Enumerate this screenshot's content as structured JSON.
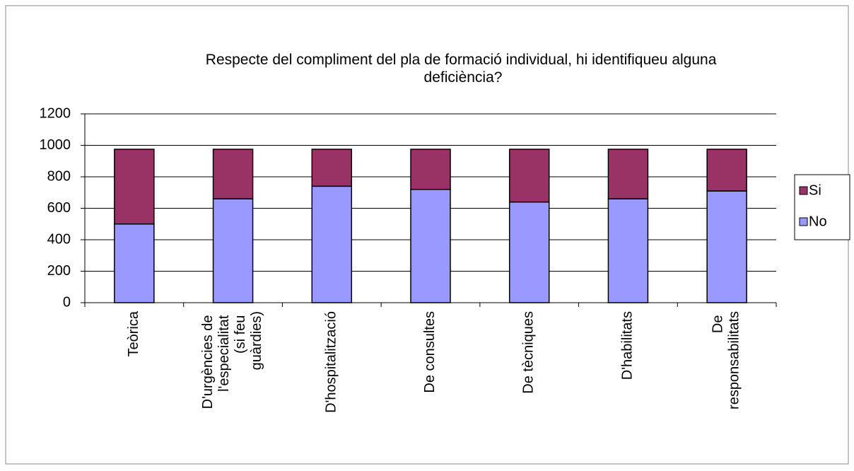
{
  "chart_data": {
    "type": "stacked_bar",
    "title": "Respecte del compliment del pla de formació individual, hi identifiqueu alguna deficiència?",
    "categories": [
      "Teòrica",
      "D'urgències de l'especialitat (si feu guàrdies)",
      "D'hospitalització",
      "De consultes",
      "De tècniques",
      "D'habilitats",
      "De responsabilitats"
    ],
    "series": [
      {
        "name": "No",
        "color": "#9999ff",
        "values": [
          500,
          660,
          740,
          720,
          640,
          660,
          710
        ]
      },
      {
        "name": "Si",
        "color": "#993366",
        "values": [
          475,
          315,
          235,
          255,
          335,
          315,
          265
        ]
      }
    ],
    "ylim": [
      0,
      1200
    ],
    "yticks": [
      0,
      200,
      400,
      600,
      800,
      1000,
      1200
    ],
    "grid": true,
    "legend": "right"
  }
}
